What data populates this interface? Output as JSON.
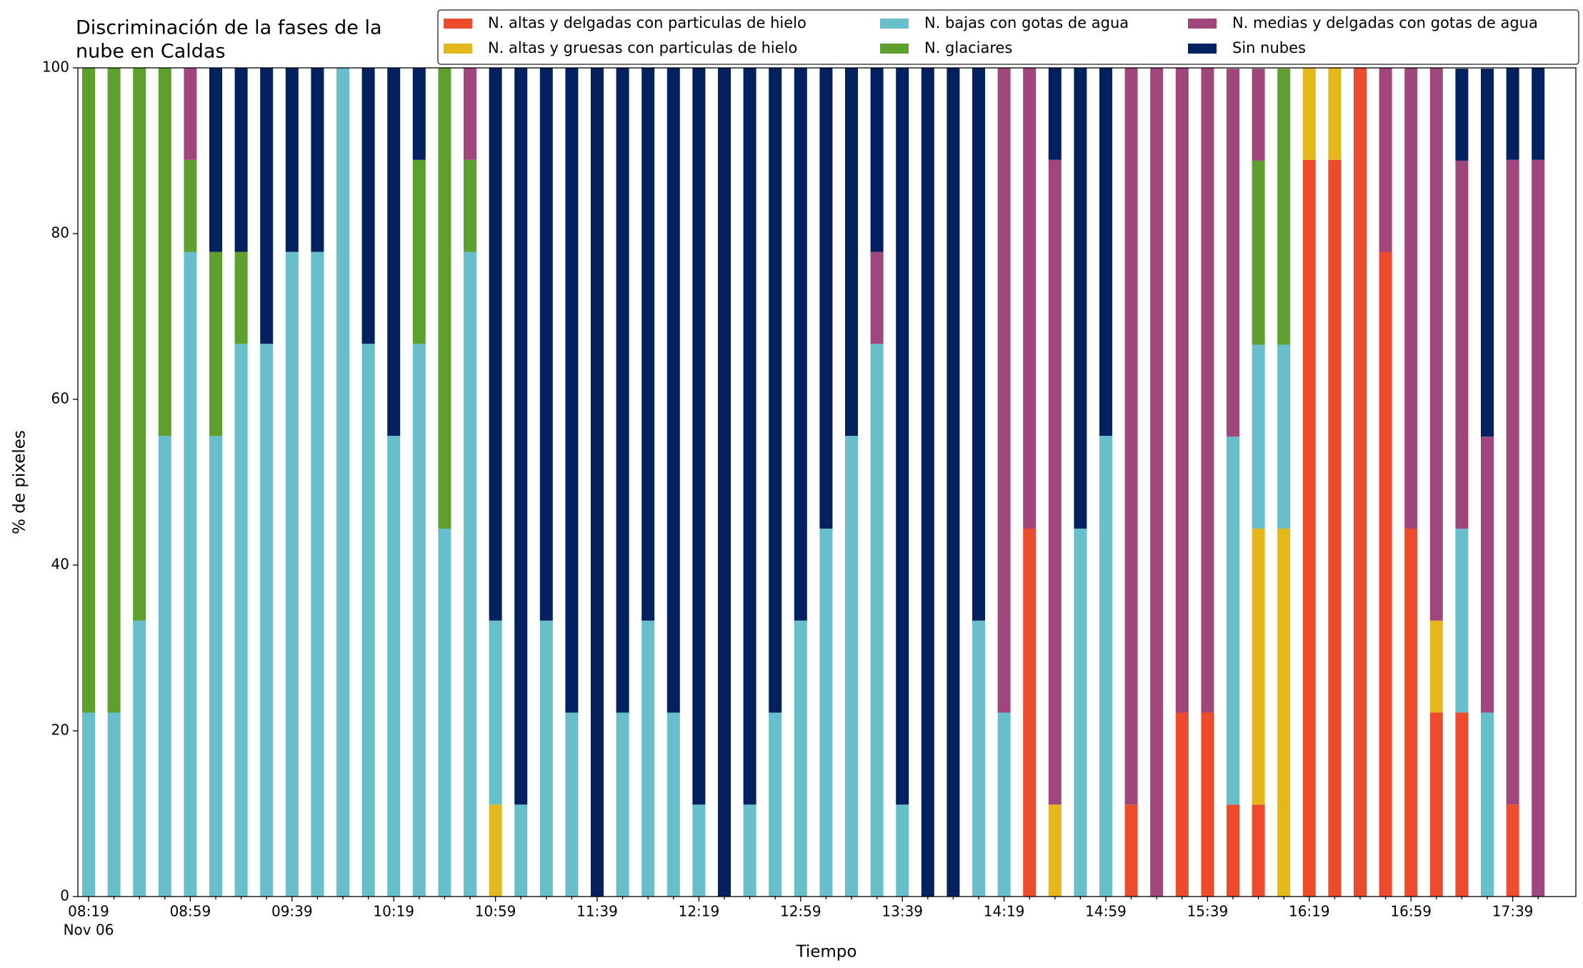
{
  "chart_data": {
    "type": "stacked_bar",
    "title": [
      "Discriminación de la fases de la",
      "nube en Caldas"
    ],
    "x_label": "Tiempo",
    "y_label": "% de pixeles",
    "x_date_label": "Nov 06",
    "categories": [
      "08:19",
      null,
      null,
      null,
      "08:59",
      null,
      null,
      null,
      "09:39",
      null,
      null,
      null,
      "10:19",
      null,
      null,
      null,
      "10:59",
      null,
      null,
      null,
      "11:39",
      null,
      null,
      null,
      "12:19",
      null,
      null,
      null,
      "12:59",
      null,
      null,
      null,
      "13:39",
      null,
      null,
      null,
      "14:19",
      null,
      null,
      null,
      "14:59",
      null,
      null,
      null,
      "15:39",
      null,
      null,
      null,
      "16:19",
      null,
      null,
      null,
      "16:59",
      null,
      null,
      null,
      "17:39",
      null
    ],
    "ylim": [
      0,
      100
    ],
    "yticks": [
      0,
      20,
      40,
      60,
      80,
      100
    ],
    "legend_columns": 3,
    "series": [
      {
        "name": "N. altas y delgadas con particulas de hielo",
        "color": "#ee4a2c",
        "values": [
          0,
          0,
          0,
          0,
          0,
          0,
          0,
          0,
          0,
          0,
          0,
          0,
          0,
          0,
          0,
          0,
          0,
          0,
          0,
          0,
          0,
          0,
          0,
          0,
          0,
          0,
          0,
          0,
          0,
          0,
          0,
          0,
          0,
          0,
          0,
          0,
          0,
          44.4,
          0,
          0,
          0,
          11.1,
          0,
          22.2,
          22.2,
          11.1,
          11.1,
          0,
          88.9,
          88.9,
          100,
          77.8,
          44.4,
          22.2,
          22.2,
          0,
          11.1,
          0
        ]
      },
      {
        "name": "N. altas y gruesas con particulas de hielo",
        "color": "#e4b81a",
        "values": [
          0,
          0,
          0,
          0,
          0,
          0,
          0,
          0,
          0,
          0,
          0,
          0,
          0,
          0,
          0,
          0,
          11.1,
          0,
          0,
          0,
          0,
          0,
          0,
          0,
          0,
          0,
          0,
          0,
          0,
          0,
          0,
          0,
          0,
          0,
          0,
          0,
          0,
          0,
          11.1,
          0,
          0,
          0,
          0,
          0,
          0,
          0,
          33.3,
          44.4,
          11.1,
          11.1,
          0,
          0,
          0,
          11.1,
          0,
          0,
          0,
          0
        ]
      },
      {
        "name": "N. bajas con gotas de agua",
        "color": "#66bfca",
        "values": [
          22.2,
          22.2,
          33.3,
          55.6,
          77.8,
          55.6,
          66.7,
          66.7,
          77.8,
          77.8,
          100,
          66.7,
          55.6,
          66.7,
          44.4,
          77.8,
          22.2,
          11.1,
          33.3,
          22.2,
          0,
          22.2,
          33.3,
          22.2,
          11.1,
          0,
          11.1,
          22.2,
          33.3,
          44.4,
          55.6,
          66.7,
          11.1,
          0,
          0,
          33.3,
          22.2,
          0,
          0,
          44.4,
          55.6,
          0,
          0,
          0,
          0,
          44.4,
          22.2,
          22.2,
          0,
          0,
          0,
          0,
          0,
          0,
          22.2,
          22.2,
          0,
          0
        ]
      },
      {
        "name": "N. glaciares",
        "color": "#5ea02d",
        "values": [
          77.8,
          77.8,
          66.7,
          44.4,
          11.1,
          22.2,
          11.1,
          0,
          0,
          0,
          0,
          0,
          0,
          22.2,
          55.6,
          11.1,
          0,
          0,
          0,
          0,
          0,
          0,
          0,
          0,
          0,
          0,
          0,
          0,
          0,
          0,
          0,
          0,
          0,
          0,
          0,
          0,
          0,
          0,
          0,
          0,
          0,
          0,
          0,
          0,
          0,
          0,
          22.2,
          33.3,
          0,
          0,
          0,
          0,
          0,
          0,
          0,
          0,
          0,
          0
        ]
      },
      {
        "name": "N. medias y delgadas con gotas de agua",
        "color": "#a0467a",
        "values": [
          0,
          0,
          0,
          0,
          11.1,
          0,
          0,
          0,
          0,
          0,
          0,
          0,
          0,
          0,
          0,
          11.1,
          0,
          0,
          0,
          0,
          0,
          0,
          0,
          0,
          0,
          0,
          0,
          0,
          0,
          0,
          0,
          11.1,
          0,
          0,
          0,
          0,
          77.8,
          55.6,
          77.8,
          0,
          0,
          88.9,
          100,
          77.8,
          77.8,
          44.4,
          11.1,
          0,
          0,
          0,
          0,
          22.2,
          55.6,
          66.7,
          44.4,
          33.3,
          77.8,
          88.9
        ]
      },
      {
        "name": "Sin nubes",
        "color": "#03205f",
        "values": [
          0,
          0,
          0,
          0,
          0,
          22.2,
          22.2,
          33.3,
          22.2,
          22.2,
          0,
          33.3,
          44.4,
          11.1,
          0,
          0,
          66.7,
          88.9,
          66.7,
          77.8,
          100,
          77.8,
          66.7,
          77.8,
          88.9,
          100,
          88.9,
          77.8,
          66.7,
          55.6,
          44.4,
          22.2,
          88.9,
          100,
          100,
          66.7,
          0,
          0,
          11.1,
          55.6,
          44.4,
          0,
          0,
          0,
          0,
          0,
          0,
          0,
          0,
          0,
          0,
          0,
          0,
          0,
          11.1,
          44.4,
          11.1,
          11.1
        ]
      }
    ]
  }
}
